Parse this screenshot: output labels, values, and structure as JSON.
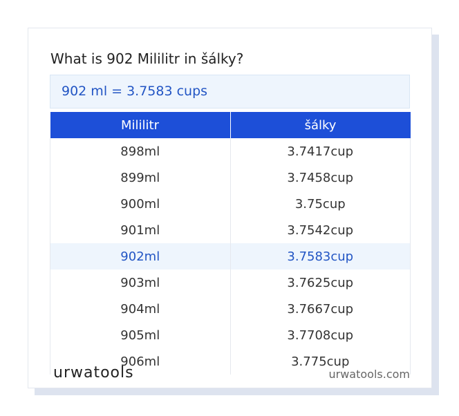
{
  "header": {
    "title": "What is 902 Mililitr in šálky?"
  },
  "result": "902 ml = 3.7583 cups",
  "table": {
    "headers": [
      "Mililitr",
      "šálky"
    ],
    "rows": [
      [
        "898ml",
        "3.7417cup"
      ],
      [
        "899ml",
        "3.7458cup"
      ],
      [
        "900ml",
        "3.75cup"
      ],
      [
        "901ml",
        "3.7542cup"
      ],
      [
        "902ml",
        "3.7583cup"
      ],
      [
        "903ml",
        "3.7625cup"
      ],
      [
        "904ml",
        "3.7667cup"
      ],
      [
        "905ml",
        "3.7708cup"
      ],
      [
        "906ml",
        "3.775cup"
      ]
    ]
  },
  "footer": {
    "logo": "urwatools",
    "site": "urwatools.com"
  }
}
